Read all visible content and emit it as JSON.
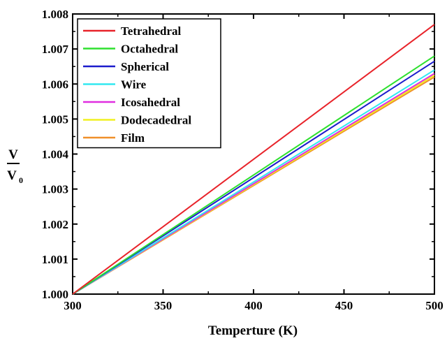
{
  "chart_data": {
    "type": "line",
    "xlabel": "Temperture (K)",
    "ylabel": {
      "numerator": "V",
      "denominator": "V",
      "subscript": "0"
    },
    "xlim": [
      300,
      500
    ],
    "ylim": [
      1.0,
      1.008
    ],
    "x_ticks": [
      "300",
      "350",
      "400",
      "450",
      "500"
    ],
    "y_ticks": [
      "1.000",
      "1.001",
      "1.002",
      "1.003",
      "1.004",
      "1.005",
      "1.006",
      "1.007",
      "1.008"
    ],
    "legend_position": "top-left",
    "series": [
      {
        "name": "Tetrahedral",
        "color": "#e8232a",
        "x": [
          300,
          500
        ],
        "y": [
          1.0,
          1.0077
        ]
      },
      {
        "name": "Octahedral",
        "color": "#2ee02e",
        "x": [
          300,
          500
        ],
        "y": [
          1.0,
          1.0068
        ]
      },
      {
        "name": "Spherical",
        "color": "#1c1ccc",
        "x": [
          300,
          500
        ],
        "y": [
          1.0,
          1.00665
        ]
      },
      {
        "name": "Wire",
        "color": "#33e8f0",
        "x": [
          300,
          500
        ],
        "y": [
          1.0,
          1.0064
        ]
      },
      {
        "name": "Icosahedral",
        "color": "#e02ee0",
        "x": [
          300,
          500
        ],
        "y": [
          1.0,
          1.0063
        ]
      },
      {
        "name": "Dodecadedral",
        "color": "#f0f020",
        "x": [
          300,
          500
        ],
        "y": [
          1.0,
          1.00625
        ]
      },
      {
        "name": "Film",
        "color": "#f0902a",
        "x": [
          300,
          500
        ],
        "y": [
          1.0,
          1.0062
        ]
      }
    ]
  }
}
